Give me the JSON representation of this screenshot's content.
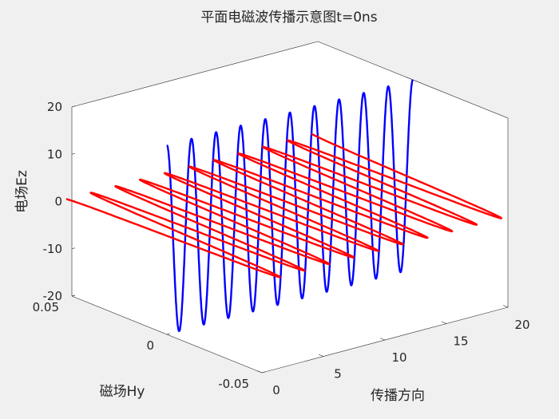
{
  "chart_data": {
    "type": "line3d",
    "title": "平面电磁波传播示意图t=0ns",
    "xlabel": "传播方向",
    "ylabel": "磁场Hy",
    "zlabel": "电场Ez",
    "xlim": [
      0,
      20
    ],
    "ylim": [
      -0.05,
      0.05
    ],
    "zlim": [
      -20,
      20
    ],
    "x_ticks": [
      "0",
      "5",
      "10",
      "15",
      "20"
    ],
    "y_ticks": [
      "-0.05",
      "0",
      "0.05"
    ],
    "z_ticks": [
      "-20",
      "-10",
      "0",
      "10",
      "20"
    ],
    "background": "#f0f0f0",
    "plot_area_color": "#ffffff",
    "series": [
      {
        "field": "Ez",
        "color": "#0000ff",
        "amplitude": 20,
        "wavelength": 2,
        "x_range": [
          0,
          20
        ]
      },
      {
        "field": "Hy",
        "color": "#ff0000",
        "amplitude": 0.053,
        "wavelength": 2,
        "x_range": [
          0,
          20
        ]
      }
    ]
  }
}
